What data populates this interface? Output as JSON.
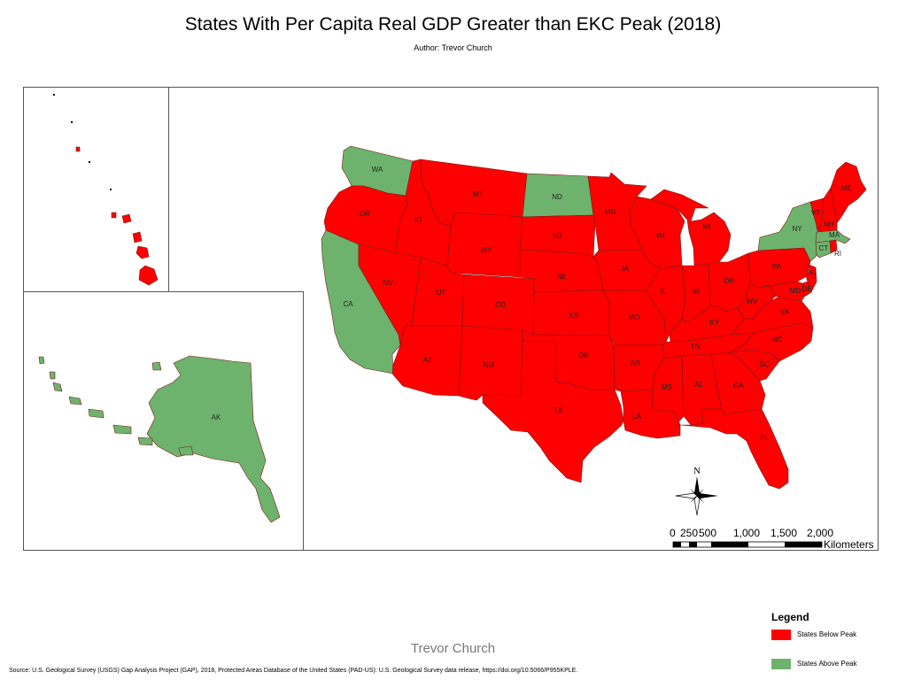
{
  "title": "States With Per Capita Real GDP Greater than EKC Peak (2018)",
  "author": "Author: Trevor Church",
  "colors": {
    "below": "#ff0000",
    "above": "#6db36d",
    "border": "#7a1a1a"
  },
  "states": {
    "WA": {
      "label": "WA",
      "status": "above"
    },
    "OR": {
      "label": "OR",
      "status": "below"
    },
    "CA": {
      "label": "CA",
      "status": "above"
    },
    "NV": {
      "label": "NV",
      "status": "below"
    },
    "ID": {
      "label": "ID",
      "status": "below"
    },
    "MT": {
      "label": "MT",
      "status": "below"
    },
    "WY": {
      "label": "WY",
      "status": "below"
    },
    "UT": {
      "label": "UT",
      "status": "below"
    },
    "AZ": {
      "label": "AZ",
      "status": "below"
    },
    "CO": {
      "label": "CO",
      "status": "below"
    },
    "NM": {
      "label": "NM",
      "status": "below"
    },
    "ND": {
      "label": "ND",
      "status": "above"
    },
    "SD": {
      "label": "SD",
      "status": "below"
    },
    "NE": {
      "label": "NE",
      "status": "below"
    },
    "KS": {
      "label": "KS",
      "status": "below"
    },
    "OK": {
      "label": "OK",
      "status": "below"
    },
    "TX": {
      "label": "TX",
      "status": "below"
    },
    "MN": {
      "label": "MN",
      "status": "below"
    },
    "IA": {
      "label": "IA",
      "status": "below"
    },
    "MO": {
      "label": "MO",
      "status": "below"
    },
    "AR": {
      "label": "AR",
      "status": "below"
    },
    "LA": {
      "label": "LA",
      "status": "below"
    },
    "WI": {
      "label": "WI",
      "status": "below"
    },
    "IL": {
      "label": "IL",
      "status": "below"
    },
    "MI": {
      "label": "MI",
      "status": "below"
    },
    "IN": {
      "label": "IN",
      "status": "below"
    },
    "OH": {
      "label": "OH",
      "status": "below"
    },
    "KY": {
      "label": "KY",
      "status": "below"
    },
    "TN": {
      "label": "TN",
      "status": "below"
    },
    "MS": {
      "label": "MS",
      "status": "below"
    },
    "AL": {
      "label": "AL",
      "status": "below"
    },
    "GA": {
      "label": "GA",
      "status": "below"
    },
    "FL": {
      "label": "FL",
      "status": "below"
    },
    "SC": {
      "label": "SC",
      "status": "below"
    },
    "NC": {
      "label": "NC",
      "status": "below"
    },
    "VA": {
      "label": "VA",
      "status": "below"
    },
    "WV": {
      "label": "WV",
      "status": "below"
    },
    "PA": {
      "label": "PA",
      "status": "below"
    },
    "NY": {
      "label": "NY",
      "status": "above"
    },
    "MD": {
      "label": "MD",
      "status": "below"
    },
    "DE": {
      "label": "DE",
      "status": "below"
    },
    "NJ": {
      "label": "NJ",
      "status": "below"
    },
    "CT": {
      "label": "CT",
      "status": "above"
    },
    "RI": {
      "label": "RI",
      "status": "below"
    },
    "MA": {
      "label": "MA",
      "status": "above"
    },
    "VT": {
      "label": "VT",
      "status": "below"
    },
    "NH": {
      "label": "NH",
      "status": "below"
    },
    "ME": {
      "label": "ME",
      "status": "below"
    },
    "AK": {
      "label": "AK",
      "status": "above"
    },
    "HI": {
      "label": "",
      "status": "below"
    }
  },
  "scale_bar": {
    "ticks": [
      "0",
      "250",
      "500",
      "1,000",
      "1,500",
      "2,000"
    ],
    "unit": "Kilometers"
  },
  "north_arrow": {
    "label": "N"
  },
  "legend": {
    "title": "Legend",
    "items": [
      {
        "label": "States Below Peak",
        "status": "below"
      },
      {
        "label": "States Above Peak",
        "status": "above"
      }
    ]
  },
  "watermark": "Trevor Church",
  "source": "Source: U.S. Geological Survey (USGS) Gap Analysis Project (GAP), 2018, Protected Areas Database of the United States (PAD-US): U.S. Geological Survey data release, https://doi.org/10.5066/P955KPLE."
}
